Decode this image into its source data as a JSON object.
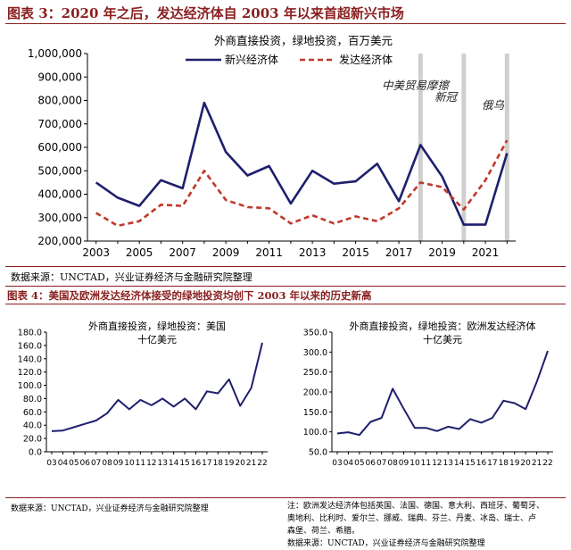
{
  "figure3": {
    "title": "图表 3：2020 年之后，发达经济体自 2003 年以来首超新兴市场",
    "source": "数据来源：UNCTAD，兴业证券经济与金融研究院整理"
  },
  "figure4": {
    "title": "图表 4：美国及欧洲发达经济体接受的绿地投资均创下 2003 年以来的历史新高",
    "source_left": "数据来源：UNCTAD，兴业证券经济与金融研究院整理",
    "note_lines": [
      "注：欧洲发达经济体包括英国、法国、德国、意大利、西班牙、葡萄牙、",
      "奥地利、比利时、爱尔兰、挪威、瑞典、芬兰、丹麦、冰岛、瑞士、卢",
      "森堡、荷兰、希腊。",
      "数据来源：UNCTAD，兴业证券经济与金融研究院整理"
    ]
  },
  "chart_data": [
    {
      "type": "line",
      "title": "外商直接投资，绿地投资，百万美元",
      "x": [
        2003,
        2004,
        2005,
        2006,
        2007,
        2008,
        2009,
        2010,
        2011,
        2012,
        2013,
        2014,
        2015,
        2016,
        2017,
        2018,
        2019,
        2020,
        2021,
        2022
      ],
      "x_tick_labels": [
        "2003",
        "2005",
        "2007",
        "2009",
        "2011",
        "2013",
        "2015",
        "2017",
        "2019",
        "2021"
      ],
      "ylim": [
        200000,
        1000000
      ],
      "y_tick_labels": [
        "200,000",
        "300,000",
        "400,000",
        "500,000",
        "600,000",
        "700,000",
        "800,000",
        "900,000",
        "1,000,000"
      ],
      "series": [
        {
          "name": "新兴经济体",
          "color": "#1f1f6e",
          "style": "solid",
          "values": [
            450000,
            385000,
            350000,
            460000,
            425000,
            790000,
            580000,
            480000,
            520000,
            360000,
            500000,
            445000,
            455000,
            530000,
            370000,
            610000,
            475000,
            270000,
            270000,
            575000
          ]
        },
        {
          "name": "发达经济体",
          "color": "#c0392b",
          "style": "dashed",
          "values": [
            320000,
            265000,
            285000,
            355000,
            350000,
            500000,
            375000,
            345000,
            340000,
            275000,
            310000,
            275000,
            305000,
            285000,
            340000,
            450000,
            430000,
            335000,
            460000,
            630000
          ]
        }
      ],
      "annotations": [
        {
          "label": "中美贸易摩擦",
          "x": 2018
        },
        {
          "label": "新冠",
          "x": 2020
        },
        {
          "label": "俄乌",
          "x": 2022
        }
      ],
      "legend": "top"
    },
    {
      "type": "line",
      "title": "外商直接投资，绿地投资：美国",
      "ylabel": "十亿美元",
      "x": [
        "03",
        "04",
        "05",
        "06",
        "07",
        "08",
        "09",
        "10",
        "11",
        "12",
        "13",
        "14",
        "15",
        "16",
        "17",
        "18",
        "19",
        "20",
        "21",
        "22"
      ],
      "ylim": [
        0,
        180
      ],
      "y_tick_labels": [
        "0.0",
        "20.0",
        "40.0",
        "60.0",
        "80.0",
        "100.0",
        "120.0",
        "140.0",
        "160.0",
        "180.0"
      ],
      "series": [
        {
          "color": "#1f1f6e",
          "values": [
            31,
            32,
            37,
            42,
            47,
            58,
            78,
            64,
            78,
            70,
            80,
            68,
            80,
            64,
            91,
            88,
            109,
            69,
            96,
            164
          ]
        }
      ],
      "grid": false
    },
    {
      "type": "line",
      "title": "外商直接投资，绿地投资：欧洲发达经济体",
      "ylabel": "十亿美元",
      "x": [
        "03",
        "04",
        "05",
        "06",
        "07",
        "08",
        "09",
        "10",
        "11",
        "12",
        "13",
        "14",
        "15",
        "16",
        "17",
        "18",
        "19",
        "20",
        "21",
        "22"
      ],
      "ylim": [
        50,
        350
      ],
      "y_tick_labels": [
        "50.0",
        "100.0",
        "150.0",
        "200.0",
        "250.0",
        "300.0",
        "350.0"
      ],
      "series": [
        {
          "color": "#1f1f6e",
          "values": [
            96,
            99,
            92,
            125,
            135,
            208,
            158,
            110,
            110,
            102,
            113,
            107,
            132,
            123,
            135,
            178,
            172,
            157,
            225,
            303
          ]
        }
      ],
      "grid": false
    }
  ]
}
